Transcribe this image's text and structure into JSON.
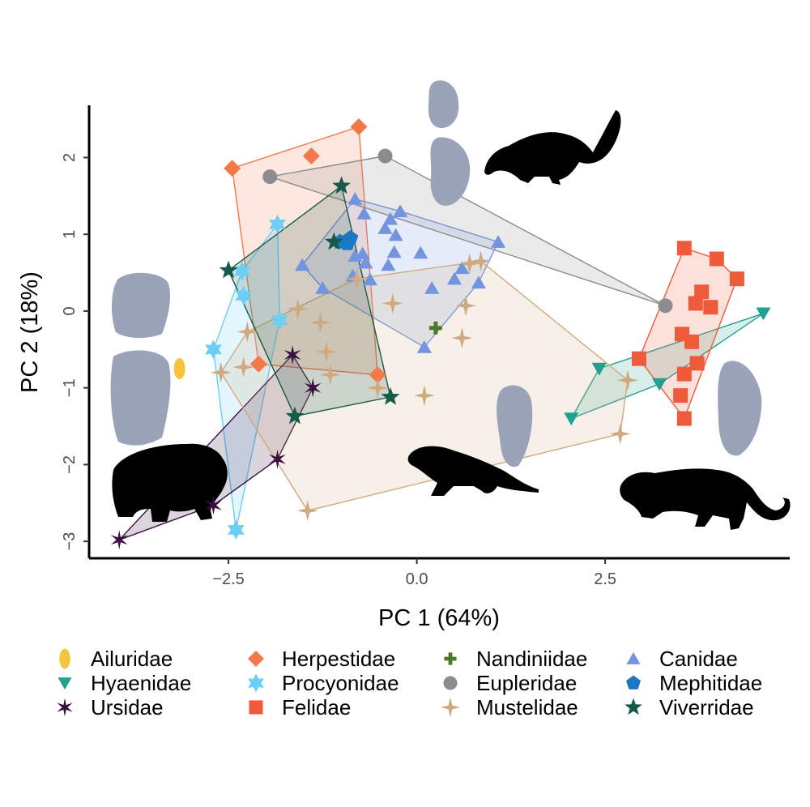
{
  "chart_data": {
    "type": "scatter",
    "xlabel": "PC 1 (64%)",
    "ylabel": "PC 2 (18%)",
    "xlim": [
      -4.35,
      4.95
    ],
    "ylim": [
      -3.22,
      2.68
    ],
    "xticks": [
      -2.5,
      0.0,
      2.5
    ],
    "xtick_labels": [
      "−2.5",
      "0.0",
      "2.5"
    ],
    "yticks": [
      2,
      1,
      0,
      -1,
      -2,
      -3
    ],
    "ytick_labels": [
      "2",
      "1",
      "0",
      "−1",
      "−2",
      "−3"
    ],
    "grid": false,
    "legend_position": "bottom",
    "hulls": true,
    "series": [
      {
        "name": "Ailuridae",
        "color": "#F5C43B",
        "marker": "ellipse",
        "points": [
          [
            -3.15,
            -0.75
          ]
        ]
      },
      {
        "name": "Herpestidae",
        "color": "#F4784A",
        "marker": "diamond",
        "points": [
          [
            -2.45,
            1.86
          ],
          [
            -1.4,
            2.02
          ],
          [
            -0.77,
            2.4
          ],
          [
            -2.1,
            -0.69
          ],
          [
            -0.52,
            -0.83
          ]
        ]
      },
      {
        "name": "Nandiniidae",
        "color": "#4A7A2A",
        "marker": "plus",
        "points": [
          [
            0.25,
            -0.22
          ]
        ]
      },
      {
        "name": "Canidae",
        "color": "#7395E0",
        "marker": "triangle-up",
        "points": [
          [
            -0.82,
            1.46
          ],
          [
            -0.7,
            1.27
          ],
          [
            -0.35,
            1.2
          ],
          [
            -0.42,
            1.08
          ],
          [
            -0.28,
            0.99
          ],
          [
            -0.22,
            1.3
          ],
          [
            -1.52,
            0.6
          ],
          [
            -1.25,
            0.3
          ],
          [
            -0.82,
            0.72
          ],
          [
            -0.68,
            0.63
          ],
          [
            -0.72,
            0.75
          ],
          [
            -0.3,
            0.77
          ],
          [
            0.05,
            0.76
          ],
          [
            -0.85,
            0.46
          ],
          [
            -0.62,
            0.41
          ],
          [
            -0.38,
            0.6
          ],
          [
            0.6,
            0.56
          ],
          [
            0.82,
            0.37
          ],
          [
            0.2,
            0.3
          ],
          [
            0.5,
            0.42
          ],
          [
            1.08,
            0.9
          ],
          [
            0.1,
            -0.47
          ]
        ]
      },
      {
        "name": "Hyaenidae",
        "color": "#22A090",
        "marker": "triangle-down",
        "points": [
          [
            4.6,
            -0.03
          ],
          [
            2.42,
            -0.75
          ],
          [
            2.05,
            -1.4
          ],
          [
            3.22,
            -0.95
          ]
        ]
      },
      {
        "name": "Procyonidae",
        "color": "#6CCEF5",
        "marker": "star6",
        "points": [
          [
            -1.85,
            1.13
          ],
          [
            -2.32,
            0.52
          ],
          [
            -2.3,
            0.2
          ],
          [
            -1.82,
            -0.12
          ],
          [
            -2.7,
            -0.5
          ],
          [
            -2.4,
            -2.85
          ]
        ]
      },
      {
        "name": "Eupleridae",
        "color": "#8A8C8E",
        "marker": "circle",
        "points": [
          [
            -1.95,
            1.75
          ],
          [
            -0.42,
            2.02
          ],
          [
            3.3,
            0.07
          ]
        ]
      },
      {
        "name": "Mephitidae",
        "color": "#1A78C2",
        "marker": "pentagon",
        "points": [
          [
            -1.02,
            0.9
          ],
          [
            -0.92,
            0.88
          ],
          [
            -0.88,
            0.95
          ]
        ]
      },
      {
        "name": "Ursidae",
        "color": "#3A1040",
        "marker": "star-thin",
        "points": [
          [
            -1.65,
            -0.57
          ],
          [
            -1.38,
            -1.0
          ],
          [
            -1.85,
            -1.93
          ],
          [
            -2.7,
            -2.53
          ],
          [
            -3.95,
            -2.98
          ]
        ]
      },
      {
        "name": "Felidae",
        "color": "#EE5A3A",
        "marker": "square",
        "points": [
          [
            3.55,
            0.82
          ],
          [
            3.98,
            0.68
          ],
          [
            4.25,
            0.42
          ],
          [
            3.78,
            0.25
          ],
          [
            3.7,
            0.1
          ],
          [
            3.9,
            0.05
          ],
          [
            3.52,
            -0.3
          ],
          [
            3.65,
            -0.4
          ],
          [
            2.95,
            -0.62
          ],
          [
            3.72,
            -0.68
          ],
          [
            3.55,
            -0.82
          ],
          [
            3.5,
            -1.1
          ],
          [
            3.55,
            -1.4
          ]
        ]
      },
      {
        "name": "Mustelidae",
        "color": "#CFAA7E",
        "marker": "star4",
        "points": [
          [
            0.85,
            0.65
          ],
          [
            0.7,
            0.62
          ],
          [
            -0.8,
            0.42
          ],
          [
            -1.58,
            0.03
          ],
          [
            -1.28,
            -0.15
          ],
          [
            -1.2,
            -0.53
          ],
          [
            -2.25,
            -0.27
          ],
          [
            -2.6,
            -0.8
          ],
          [
            -2.3,
            -0.73
          ],
          [
            -1.15,
            -0.83
          ],
          [
            -0.52,
            -1.0
          ],
          [
            -1.45,
            -2.6
          ],
          [
            -0.32,
            0.1
          ],
          [
            0.65,
            0.07
          ],
          [
            0.6,
            -0.35
          ],
          [
            0.1,
            -1.1
          ],
          [
            2.8,
            -0.9
          ],
          [
            2.7,
            -1.6
          ]
        ]
      },
      {
        "name": "Viverridae",
        "color": "#165A4A",
        "marker": "star5",
        "points": [
          [
            -1.0,
            1.63
          ],
          [
            -2.5,
            0.53
          ],
          [
            -1.1,
            0.9
          ],
          [
            -1.62,
            -1.37
          ],
          [
            -0.35,
            -1.12
          ]
        ]
      }
    ]
  }
}
